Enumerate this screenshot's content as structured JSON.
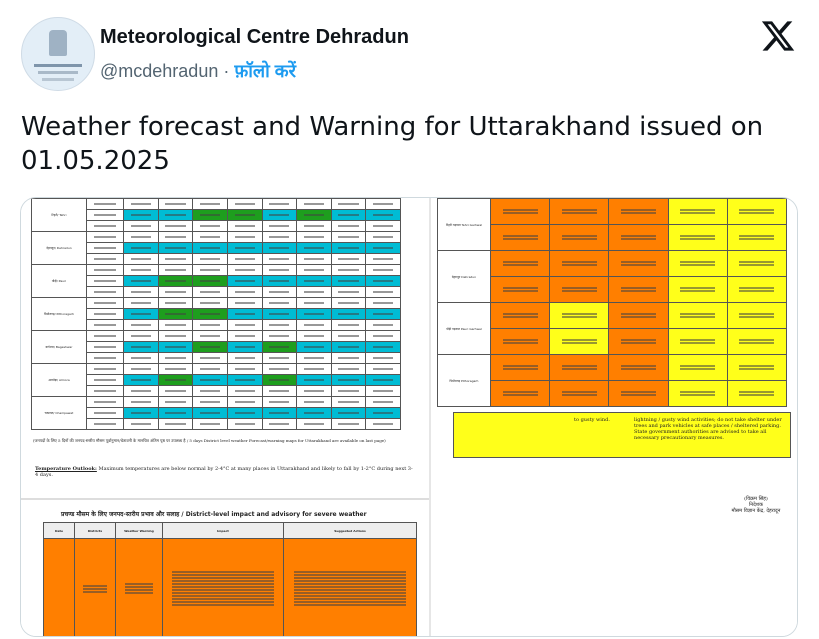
{
  "author": {
    "display_name": "Meteorological Centre Dehradun",
    "handle": "@mcdehradun",
    "separator": "·",
    "follow_label": "फ़ॉलो करें",
    "avatar_icon": "imd-emblem-icon"
  },
  "platform_icon": "x-logo-icon",
  "tweet": {
    "text": "Weather forecast and Warning for Uttarakhand issued on 01.05.2025"
  },
  "media": {
    "left_table_rows": [
      {
        "district": "टिहरी/ Tehri",
        "cells": [
          "cyan",
          "cyan",
          "green",
          "green",
          "cyan",
          "green",
          "cyan",
          "cyan"
        ]
      },
      {
        "district": "देहरादून/ Dehradun",
        "cells": [
          "cyan",
          "cyan",
          "cyan",
          "cyan",
          "cyan",
          "cyan",
          "cyan",
          "cyan"
        ]
      },
      {
        "district": "पौड़ी/ Pauri",
        "cells": [
          "cyan",
          "green",
          "green",
          "cyan",
          "cyan",
          "cyan",
          "cyan",
          "cyan"
        ]
      },
      {
        "district": "पिथौरागढ़/ Pithoragarh",
        "cells": [
          "cyan",
          "green",
          "green",
          "cyan",
          "cyan",
          "cyan",
          "cyan",
          "cyan"
        ]
      },
      {
        "district": "बागेश्वर/ Bageshwar",
        "cells": [
          "cyan",
          "cyan",
          "green",
          "cyan",
          "green",
          "cyan",
          "cyan",
          "cyan"
        ]
      },
      {
        "district": "अल्मोड़ा/ Almora",
        "cells": [
          "cyan",
          "green",
          "cyan",
          "cyan",
          "green",
          "cyan",
          "cyan",
          "cyan"
        ]
      },
      {
        "district": "चम्पावत/ Champawat",
        "cells": [
          "cyan",
          "cyan",
          "cyan",
          "cyan",
          "cyan",
          "cyan",
          "cyan",
          "cyan"
        ]
      }
    ],
    "note_line": "(जनपदों के लिए 5 दिनों की जनपद-स्तरीय मौसम पूर्वानुमान/चेतावनी के मानचित्र अंतिम पृष्ठ पर उपलब्ध है / 5 days District level weather Forecast/warning maps for Uttarakhand are available on last page)",
    "temperature_outlook_title": "Temperature Outlook:",
    "temperature_outlook_text": "Maximum temperatures are below normal by 2-4°C at many places in Uttarakhand and likely to fall by 1-2°C during next 3-4 days.",
    "advisory_title": "प्रचण्ड मौसम के लिए जनपद-स्तरीय प्रभाव और सलाह / District-level impact and advisory for severe weather",
    "advisory_headers": [
      "Date",
      "Districts",
      "Weather Warning",
      "Impact",
      "Suggested Actions"
    ],
    "right_table_rows": [
      {
        "district": "टिहरी गढ़वाल Tehri Garhwal",
        "cells": [
          "orange",
          "orange",
          "orange",
          "yellow",
          "yellow"
        ]
      },
      {
        "district": "देहरादून Dehradun",
        "cells": [
          "orange",
          "orange",
          "orange",
          "yellow",
          "yellow"
        ]
      },
      {
        "district": "पौड़ी गढ़वाल Pauri Garhwal",
        "cells": [
          "orange",
          "yellow",
          "orange",
          "yellow",
          "yellow"
        ]
      },
      {
        "district": "पिथौरागढ़ Pithoragarh",
        "cells": [
          "orange",
          "orange",
          "orange",
          "yellow",
          "yellow"
        ]
      }
    ],
    "right_bottom_text": "to gusty wind.",
    "right_bottom_actions": "lightning / gusty wind activities; do not take shelter under trees and park vehicles at safe places / sheltered parking. State government authorities are advised to take all necessary precautionary measures.",
    "signature_name": "(विक्रम सिंह)",
    "signature_title": "निदेशक",
    "signature_office": "मौसम विज्ञान केंद्र, देहरादून"
  }
}
